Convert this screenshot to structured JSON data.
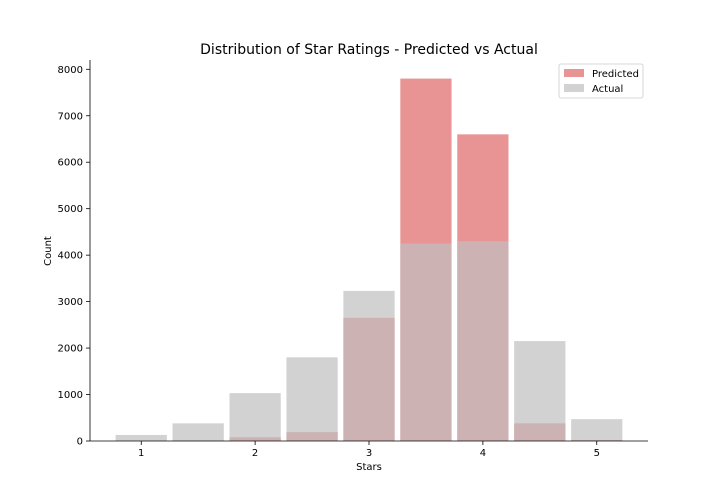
{
  "chart_data": {
    "type": "bar",
    "title": "Distribution of Star Ratings - Predicted vs Actual",
    "xlabel": "Stars",
    "ylabel": "Count",
    "xlim": [
      0.55,
      5.45
    ],
    "ylim": [
      0,
      8200
    ],
    "x_ticks": [
      1,
      2,
      3,
      4,
      5
    ],
    "y_ticks": [
      0,
      1000,
      2000,
      3000,
      4000,
      5000,
      6000,
      7000,
      8000
    ],
    "bar_width": 0.45,
    "legend_position": "top-right",
    "grid": false,
    "series": [
      {
        "name": "Predicted",
        "color": "#e06666",
        "opacity": 0.7,
        "x": [
          1,
          1.5,
          2,
          2.5,
          3,
          3.5,
          4,
          4.5,
          5
        ],
        "values": [
          0,
          10,
          80,
          190,
          2650,
          7800,
          6600,
          380,
          20
        ]
      },
      {
        "name": "Actual",
        "color": "#bfbfbf",
        "opacity": 0.7,
        "x": [
          1,
          1.5,
          2,
          2.5,
          3,
          3.5,
          4,
          4.5,
          5
        ],
        "values": [
          130,
          380,
          1030,
          1800,
          3230,
          4250,
          4300,
          2150,
          470
        ]
      }
    ]
  }
}
